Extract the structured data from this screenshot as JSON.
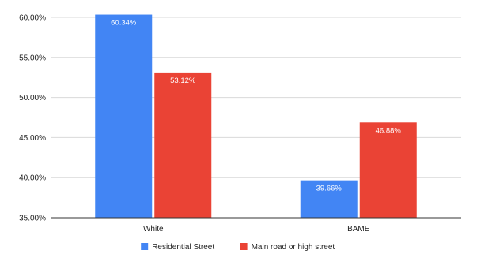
{
  "chart_data": {
    "type": "bar",
    "categories": [
      "White",
      "BAME"
    ],
    "series": [
      {
        "name": "Residential Street",
        "values": [
          60.34,
          39.66
        ],
        "labels": [
          "60.34%",
          "39.66%"
        ],
        "color": "#4285f4"
      },
      {
        "name": "Main road or high street",
        "values": [
          53.12,
          46.88
        ],
        "labels": [
          "53.12%",
          "46.88%"
        ],
        "color": "#ea4335"
      }
    ],
    "ylim": [
      35,
      60
    ],
    "yticks": [
      35,
      40,
      45,
      50,
      55,
      60
    ],
    "ytick_labels": [
      "35.00%",
      "40.00%",
      "45.00%",
      "50.00%",
      "55.00%",
      "60.00%"
    ],
    "grid": true,
    "legend_position": "bottom"
  }
}
